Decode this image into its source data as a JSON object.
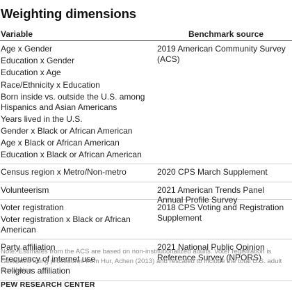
{
  "title": "Weighting dimensions",
  "table": {
    "headers": {
      "variable": "Variable",
      "source": "Benchmark source"
    },
    "groups": [
      {
        "variables": [
          "Age x Gender",
          "Education x Gender",
          "Education x Age",
          "Race/Ethnicity x Education",
          "Born inside vs. outside the U.S. among Hispanics and Asian Americans",
          "Years lived in the U.S.",
          "Gender x Black or African American",
          "Age x Black or African American",
          "Education x Black or African American"
        ],
        "source": "2019 American Community Survey (ACS)"
      },
      {
        "variables": [
          "Census region x Metro/Non-metro"
        ],
        "source": "2020 CPS March Supplement"
      },
      {
        "variables": [
          "Volunteerism"
        ],
        "source": "2021 American Trends Panel Annual Profile Survey"
      },
      {
        "variables": [
          "Voter registration",
          "Voter registration x Black or African American"
        ],
        "source": "2018 CPS Voting and Registration Supplement"
      },
      {
        "variables": [
          "Party affiliation",
          "Frequency of internet use",
          "Religious affiliation"
        ],
        "source": "2021 National Public Opinion Reference Survey (NPORS)"
      }
    ]
  },
  "note": "Note: Estimates from the ACS are based on non-institutionalized adults. Voter registration is calculated using procedures from Hur, Achen (2013) and rescaled to include the total U.S. adult population.",
  "credit": "PEW RESEARCH CENTER"
}
